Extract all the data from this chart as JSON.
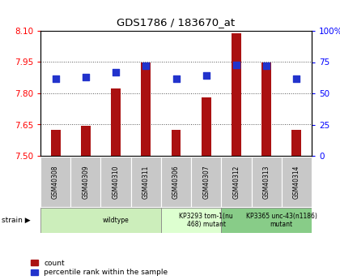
{
  "title": "GDS1786 / 183670_at",
  "samples": [
    "GSM40308",
    "GSM40309",
    "GSM40310",
    "GSM40311",
    "GSM40306",
    "GSM40307",
    "GSM40312",
    "GSM40313",
    "GSM40314"
  ],
  "count_values": [
    7.625,
    7.645,
    7.825,
    7.95,
    7.625,
    7.78,
    8.09,
    7.95,
    7.625
  ],
  "percentile_values": [
    62,
    63,
    67,
    72,
    62,
    64,
    73,
    72,
    62
  ],
  "ylim_left": [
    7.5,
    8.1
  ],
  "ylim_right": [
    0,
    100
  ],
  "yticks_left": [
    7.5,
    7.65,
    7.8,
    7.95,
    8.1
  ],
  "yticks_right": [
    0,
    25,
    50,
    75,
    100
  ],
  "bar_color": "#AA1111",
  "dot_color": "#2233CC",
  "strain_groups": [
    {
      "label": "wildtype",
      "start": 0,
      "end": 4,
      "color": "#cceebb"
    },
    {
      "label": "KP3293 tom-1(nu\n468) mutant",
      "start": 4,
      "end": 6,
      "color": "#ddffd0"
    },
    {
      "label": "KP3365 unc-43(n1186)\nmutant",
      "start": 6,
      "end": 9,
      "color": "#88cc88"
    }
  ],
  "sample_box_color": "#c8c8c8",
  "legend_count_label": "count",
  "legend_pct_label": "percentile rank within the sample",
  "strain_label": "strain"
}
